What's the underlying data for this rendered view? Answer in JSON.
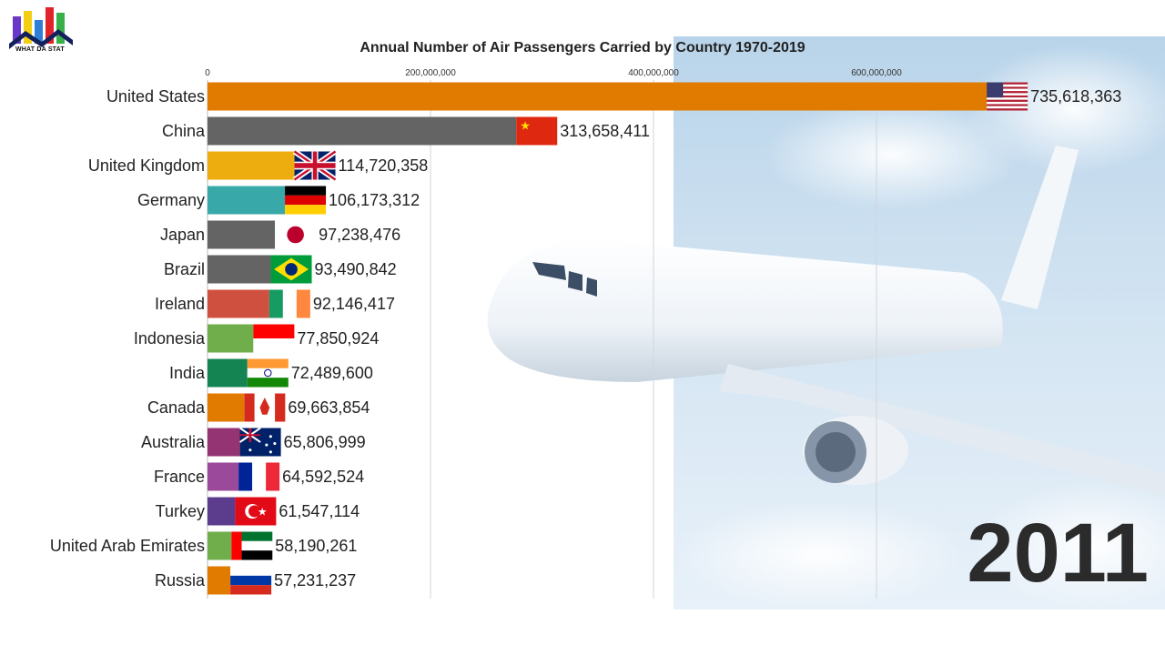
{
  "brand": {
    "name": "WHAT DA STAT"
  },
  "chart_data": {
    "type": "bar",
    "orientation": "horizontal",
    "title": "Annual Number of Air Passengers Carried by Country 1970-2019",
    "year": "2011",
    "xlim": [
      0,
      800000000
    ],
    "ticks": [
      {
        "value": 0,
        "label": "0"
      },
      {
        "value": 200000000,
        "label": "200,000,000"
      },
      {
        "value": 400000000,
        "label": "400,000,000"
      },
      {
        "value": 600000000,
        "label": "600,000,000"
      }
    ],
    "bars": [
      {
        "country": "United States",
        "value": 735618363,
        "label": "735,618,363",
        "color": "#e07b00",
        "flag": "us-flag"
      },
      {
        "country": "China",
        "value": 313658411,
        "label": "313,658,411",
        "color": "#646464",
        "flag": "cn-flag"
      },
      {
        "country": "United Kingdom",
        "value": 114720358,
        "label": "114,720,358",
        "color": "#eead0e",
        "flag": "uk-flag"
      },
      {
        "country": "Germany",
        "value": 106173312,
        "label": "106,173,312",
        "color": "#38a8a8",
        "flag": "de-flag"
      },
      {
        "country": "Japan",
        "value": 97238476,
        "label": "97,238,476",
        "color": "#646464",
        "flag": "jp-flag"
      },
      {
        "country": "Brazil",
        "value": 93490842,
        "label": "93,490,842",
        "color": "#646464",
        "flag": "br-flag"
      },
      {
        "country": "Ireland",
        "value": 92146417,
        "label": "92,146,417",
        "color": "#d05040",
        "flag": "ie-flag"
      },
      {
        "country": "Indonesia",
        "value": 77850924,
        "label": "77,850,924",
        "color": "#6fae4a",
        "flag": "id-flag"
      },
      {
        "country": "India",
        "value": 72489600,
        "label": "72,489,600",
        "color": "#148452",
        "flag": "in-flag"
      },
      {
        "country": "Canada",
        "value": 69663854,
        "label": "69,663,854",
        "color": "#e07b00",
        "flag": "ca-flag"
      },
      {
        "country": "Australia",
        "value": 65806999,
        "label": "65,806,999",
        "color": "#943472",
        "flag": "au-flag"
      },
      {
        "country": "France",
        "value": 64592524,
        "label": "64,592,524",
        "color": "#9b4a9b",
        "flag": "fr-flag"
      },
      {
        "country": "Turkey",
        "value": 61547114,
        "label": "61,547,114",
        "color": "#5c3c8c",
        "flag": "tr-flag"
      },
      {
        "country": "United Arab Emirates",
        "value": 58190261,
        "label": "58,190,261",
        "color": "#6fae4a",
        "flag": "ae-flag"
      },
      {
        "country": "Russia",
        "value": 57231237,
        "label": "57,231,237",
        "color": "#e07b00",
        "flag": "ru-flag"
      }
    ]
  }
}
